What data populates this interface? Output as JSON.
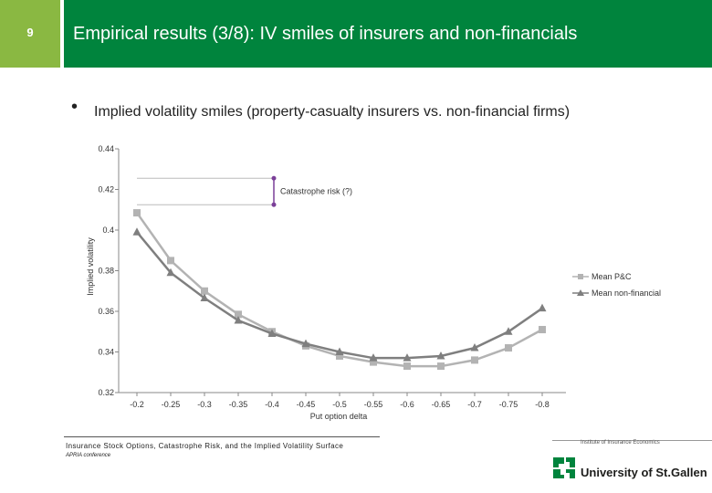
{
  "slide": {
    "number": "9",
    "title": "Empirical results (3/8): IV smiles of insurers and non-financials",
    "bullet": "Implied volatility smiles (property-casualty insurers vs. non-financial firms)"
  },
  "colors": {
    "header_bar": "#00843d",
    "slide_number_box": "#8ab842",
    "series_pc": "#b3b3b3",
    "series_nonfin": "#7f7f7f",
    "annotation": "#7b3f99"
  },
  "chart_data": {
    "type": "line",
    "xlabel": "Put option delta",
    "ylabel": "Implied volatility",
    "categories": [
      "-0.2",
      "-0.25",
      "-0.3",
      "-0.35",
      "-0.4",
      "-0.45",
      "-0.5",
      "-0.55",
      "-0.6",
      "-0.65",
      "-0.7",
      "-0.75",
      "-0.8"
    ],
    "y_ticks": [
      "0.44",
      "0.42",
      "0.4",
      "0.38",
      "0.36",
      "0.34",
      "0.32"
    ],
    "ylim": [
      0.32,
      0.44
    ],
    "grid": false,
    "legend_position": "right",
    "series": [
      {
        "name": "Mean P&C",
        "marker": "square",
        "values": [
          0.4085,
          0.385,
          0.37,
          0.3585,
          0.35,
          0.343,
          0.338,
          0.335,
          0.333,
          0.333,
          0.336,
          0.342,
          0.351
        ]
      },
      {
        "name": "Mean non-financial",
        "marker": "triangle",
        "values": [
          0.399,
          0.379,
          0.3665,
          0.3555,
          0.349,
          0.344,
          0.34,
          0.337,
          0.337,
          0.338,
          0.342,
          0.35,
          0.3615
        ]
      }
    ],
    "annotation": {
      "label": "Catastrophe risk (?)",
      "y_top": 0.4255,
      "y_bottom": 0.4125
    }
  },
  "footer": {
    "title": "Insurance Stock Options, Catastrophe Risk, and the Implied Volatility Surface",
    "subtitle": "APRIA conference"
  },
  "branding": {
    "institute": "Institute of Insurance Economics",
    "university": "University of St.Gallen",
    "logo_icon": "hsg-logo-icon"
  }
}
